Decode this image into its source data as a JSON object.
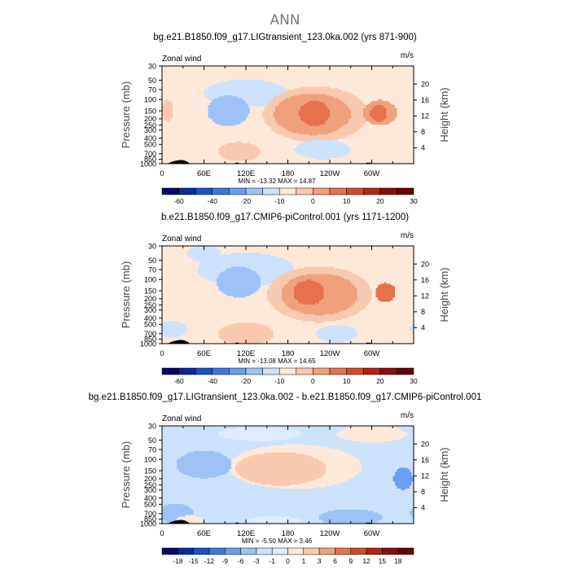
{
  "figure_title": "ANN",
  "colors": {
    "text": "#000000",
    "background": "#ffffff",
    "topo": "#000000"
  },
  "chart_data": [
    {
      "type": "heatmap",
      "title": "bg.e21.B1850.f09_g17.LIGtransient_123.0ka.002 (yrs 871-900)",
      "variable_label": "Zonal wind",
      "units_label": "m/s",
      "ylabel": "Pressure (mb)",
      "y2label": "Height (km)",
      "x_ticks": [
        "0",
        "60E",
        "120E",
        "180",
        "120W",
        "60W"
      ],
      "y_ticks": [
        "30",
        "50",
        "70",
        "100",
        "150",
        "200",
        "250",
        "300",
        "400",
        "500",
        "700",
        "850",
        "1000"
      ],
      "y2_ticks": [
        "20",
        "16",
        "12",
        "8",
        "4"
      ],
      "min_max_text": "MIN = -13.32   MAX = 14.87",
      "colorbar": {
        "levels": [
          "-60",
          "-40",
          "-20",
          "-10",
          "0",
          "10",
          "20",
          "30"
        ],
        "colors": [
          "#08086b",
          "#0b2a9c",
          "#1c50c8",
          "#3a78e0",
          "#6a9ef0",
          "#9ec2f7",
          "#cde1fb",
          "#fde9da",
          "#f8c9ae",
          "#f1a07c",
          "#e6724c",
          "#d44a28",
          "#b52314",
          "#8a0c0c",
          "#650404"
        ]
      },
      "field": {
        "base": 7,
        "blobs": [
          {
            "lon": 95,
            "p": 150,
            "level": 5,
            "dlon": 30,
            "dz": 0.55
          },
          {
            "lon": 120,
            "p": 80,
            "level": 6,
            "dlon": 60,
            "dz": 0.5
          },
          {
            "lon": 220,
            "p": 170,
            "level": 8,
            "dlon": 75,
            "dz": 1.0
          },
          {
            "lon": 215,
            "p": 170,
            "level": 9,
            "dlon": 55,
            "dz": 0.75
          },
          {
            "lon": 218,
            "p": 165,
            "level": 10,
            "dlon": 22,
            "dz": 0.45
          },
          {
            "lon": 312,
            "p": 160,
            "level": 9,
            "dlon": 25,
            "dz": 0.45
          },
          {
            "lon": 310,
            "p": 165,
            "level": 10,
            "dlon": 12,
            "dz": 0.3
          },
          {
            "lon": 110,
            "p": 650,
            "level": 8,
            "dlon": 30,
            "dz": 0.35
          },
          {
            "lon": 230,
            "p": 600,
            "level": 6,
            "dlon": 40,
            "dz": 0.35
          },
          {
            "lon": 8,
            "p": 150,
            "level": 8,
            "dlon": 8,
            "dz": 0.4
          }
        ]
      }
    },
    {
      "type": "heatmap",
      "title": "b.e21.B1850.f09_g17.CMIP6-piControl.001 (yrs 1171-1200)",
      "variable_label": "Zonal wind",
      "units_label": "m/s",
      "ylabel": "Pressure (mb)",
      "y2label": "Height (km)",
      "x_ticks": [
        "0",
        "60E",
        "120E",
        "180",
        "120W",
        "60W"
      ],
      "y_ticks": [
        "30",
        "50",
        "70",
        "100",
        "150",
        "200",
        "250",
        "300",
        "400",
        "500",
        "700",
        "850",
        "1000"
      ],
      "y2_ticks": [
        "20",
        "16",
        "12",
        "8",
        "4"
      ],
      "min_max_text": "MIN = -13.08   MAX = 14.65",
      "colorbar": {
        "levels": [
          "-60",
          "-40",
          "-20",
          "-10",
          "0",
          "10",
          "20",
          "30"
        ],
        "colors": [
          "#08086b",
          "#0b2a9c",
          "#1c50c8",
          "#3a78e0",
          "#6a9ef0",
          "#9ec2f7",
          "#cde1fb",
          "#fde9da",
          "#f8c9ae",
          "#f1a07c",
          "#e6724c",
          "#d44a28",
          "#b52314",
          "#8a0c0c",
          "#650404"
        ]
      },
      "field": {
        "base": 7,
        "blobs": [
          {
            "lon": 110,
            "p": 110,
            "level": 5,
            "dlon": 32,
            "dz": 0.55
          },
          {
            "lon": 120,
            "p": 70,
            "level": 6,
            "dlon": 70,
            "dz": 0.6
          },
          {
            "lon": 225,
            "p": 170,
            "level": 8,
            "dlon": 75,
            "dz": 1.0
          },
          {
            "lon": 225,
            "p": 170,
            "level": 9,
            "dlon": 55,
            "dz": 0.75
          },
          {
            "lon": 210,
            "p": 160,
            "level": 10,
            "dlon": 22,
            "dz": 0.45
          },
          {
            "lon": 320,
            "p": 160,
            "level": 10,
            "dlon": 14,
            "dz": 0.35
          },
          {
            "lon": 15,
            "p": 600,
            "level": 6,
            "dlon": 20,
            "dz": 0.3
          },
          {
            "lon": 120,
            "p": 700,
            "level": 8,
            "dlon": 40,
            "dz": 0.4
          },
          {
            "lon": 60,
            "p": 40,
            "level": 6,
            "dlon": 25,
            "dz": 0.3
          },
          {
            "lon": 250,
            "p": 700,
            "level": 6,
            "dlon": 30,
            "dz": 0.3
          }
        ]
      }
    },
    {
      "type": "heatmap",
      "title": "bg.e21.B1850.f09_g17.LIGtransient_123.0ka.002 - b.e21.B1850.f09_g17.CMIP6-piControl.001",
      "variable_label": "Zonal wind",
      "units_label": "m/s",
      "ylabel": "Pressure (mb)",
      "y2label": "Height (km)",
      "x_ticks": [
        "0",
        "60E",
        "120E",
        "180",
        "120W",
        "60W"
      ],
      "y_ticks": [
        "30",
        "50",
        "70",
        "100",
        "150",
        "200",
        "250",
        "300",
        "400",
        "500",
        "700",
        "850",
        "1000"
      ],
      "y2_ticks": [
        "20",
        "16",
        "12",
        "8",
        "4"
      ],
      "min_max_text": "MIN = -5.50   MAX = 3.46",
      "colorbar": {
        "levels": [
          "-18",
          "-15",
          "-12",
          "-9",
          "-6",
          "-3",
          "-1",
          "0",
          "1",
          "3",
          "6",
          "9",
          "12",
          "15",
          "18"
        ],
        "colors": [
          "#08086b",
          "#0b2a9c",
          "#1c50c8",
          "#3a78e0",
          "#6a9ef0",
          "#9ec2f7",
          "#cde1fb",
          "#deebfc",
          "#fde9da",
          "#f8c9ae",
          "#f1a07c",
          "#e6724c",
          "#d44a28",
          "#b52314",
          "#8a0c0c",
          "#650404"
        ]
      },
      "field": {
        "base": 6,
        "blobs": [
          {
            "lon": 190,
            "p": 130,
            "level": 8,
            "dlon": 95,
            "dz": 0.8
          },
          {
            "lon": 170,
            "p": 140,
            "level": 9,
            "dlon": 65,
            "dz": 0.6
          },
          {
            "lon": 195,
            "p": 210,
            "level": 6,
            "dlon": 10,
            "dz": 0.18
          },
          {
            "lon": 140,
            "p": 40,
            "level": 7,
            "dlon": 60,
            "dz": 0.25
          },
          {
            "lon": 300,
            "p": 40,
            "level": 8,
            "dlon": 50,
            "dz": 0.3
          },
          {
            "lon": 60,
            "p": 120,
            "level": 5,
            "dlon": 40,
            "dz": 0.5
          },
          {
            "lon": 345,
            "p": 200,
            "level": 4,
            "dlon": 14,
            "dz": 0.4
          },
          {
            "lon": 20,
            "p": 700,
            "level": 5,
            "dlon": 25,
            "dz": 0.35
          },
          {
            "lon": 270,
            "p": 800,
            "level": 5,
            "dlon": 45,
            "dz": 0.3
          },
          {
            "lon": 40,
            "p": 900,
            "level": 8,
            "dlon": 20,
            "dz": 0.18
          },
          {
            "lon": 160,
            "p": 900,
            "level": 7,
            "dlon": 40,
            "dz": 0.15
          }
        ]
      }
    }
  ]
}
